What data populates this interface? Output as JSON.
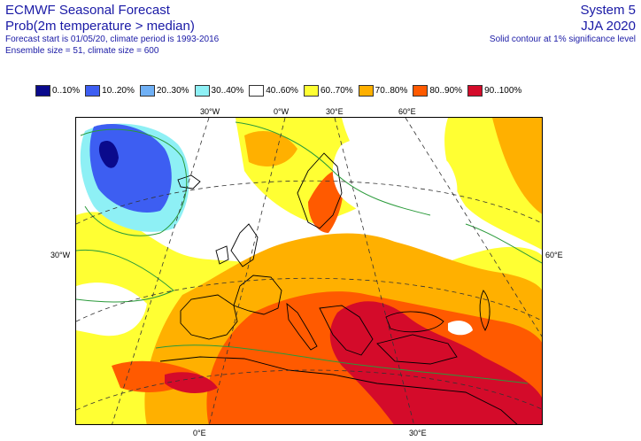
{
  "header": {
    "title": "ECMWF Seasonal Forecast",
    "subtitle": "Prob(2m temperature > median)",
    "line1": "Forecast start is 01/05/20, climate period is 1993-2016",
    "line2": "Ensemble size = 51, climate size = 600",
    "system": "System 5",
    "season": "JJA 2020",
    "note": "Solid contour at 1% significance level"
  },
  "legend": [
    {
      "label": "0..10%",
      "color": "#0a0a8c"
    },
    {
      "label": "10..20%",
      "color": "#3d5ef2"
    },
    {
      "label": "20..30%",
      "color": "#6fb0f5"
    },
    {
      "label": "30..40%",
      "color": "#8ef0f5"
    },
    {
      "label": "40..60%",
      "color": "#ffffff"
    },
    {
      "label": "60..70%",
      "color": "#ffff33"
    },
    {
      "label": "70..80%",
      "color": "#ffb000"
    },
    {
      "label": "80..90%",
      "color": "#ff5a00"
    },
    {
      "label": "90..100%",
      "color": "#d40b2a"
    }
  ],
  "axes": {
    "top": [
      "30°W",
      "0°W",
      "30°E",
      "60°E"
    ],
    "left": "30°W",
    "right": "60°E",
    "bottom": [
      "0°E",
      "30°E"
    ]
  }
}
